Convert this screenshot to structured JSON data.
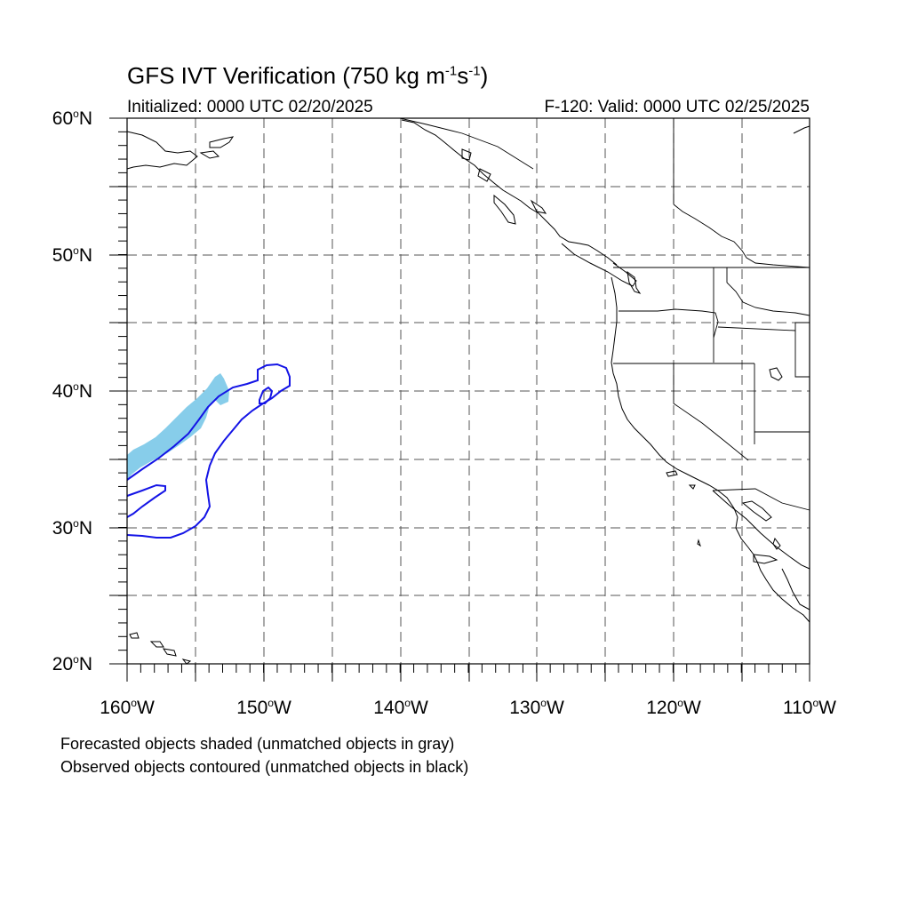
{
  "title": {
    "main": "GFS IVT Verification (750 kg m",
    "exp1": "-1",
    "mid": "s",
    "exp2": "-1",
    "end": ")"
  },
  "subtitle_left": "Initialized: 0000 UTC 02/20/2025",
  "subtitle_right": "F-120: Valid: 0000 UTC 02/25/2025",
  "degree_symbol": "o",
  "lat_labels": [
    {
      "num": "60",
      "hemi": "N"
    },
    {
      "num": "50",
      "hemi": "N"
    },
    {
      "num": "40",
      "hemi": "N"
    },
    {
      "num": "30",
      "hemi": "N"
    },
    {
      "num": "20",
      "hemi": "N"
    }
  ],
  "lon_labels": [
    {
      "num": "160",
      "hemi": "W"
    },
    {
      "num": "150",
      "hemi": "W"
    },
    {
      "num": "140",
      "hemi": "W"
    },
    {
      "num": "130",
      "hemi": "W"
    },
    {
      "num": "120",
      "hemi": "W"
    },
    {
      "num": "110",
      "hemi": "W"
    }
  ],
  "legend_note_1": "Forecasted objects shaded (unmatched objects in gray)",
  "legend_note_2": "Observed objects contoured (unmatched objects in black)",
  "colors": {
    "forecast_fill": "#87cdea",
    "observed_contour": "#1414e6",
    "coastline": "#000000",
    "grid": "#555555"
  }
}
